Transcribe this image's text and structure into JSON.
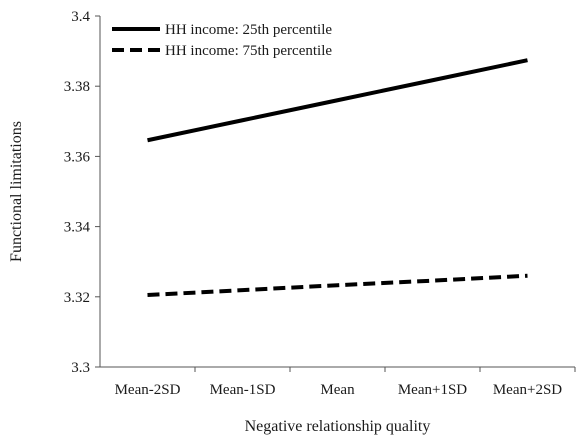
{
  "chart_data": {
    "type": "line",
    "title": "",
    "xlabel": "Negative relationship quality",
    "ylabel": "Functional limitations",
    "categories": [
      "Mean-2SD",
      "Mean-1SD",
      "Mean",
      "Mean+1SD",
      "Mean+2SD"
    ],
    "ylim": [
      3.3,
      3.4
    ],
    "yticks": [
      "3.3",
      "3.32",
      "3.34",
      "3.36",
      "3.38",
      "3.4"
    ],
    "grid": false,
    "legend_position": "top-left",
    "series": [
      {
        "name": "HH income: 25th percentile",
        "style": "solid",
        "color": "#000000",
        "values": [
          3.3646,
          3.3703,
          3.376,
          3.3817,
          3.3874
        ]
      },
      {
        "name": "HH income: 75th percentile",
        "style": "dashed",
        "color": "#000000",
        "values": [
          3.3205,
          3.3219,
          3.3233,
          3.3246,
          3.326
        ]
      }
    ]
  }
}
